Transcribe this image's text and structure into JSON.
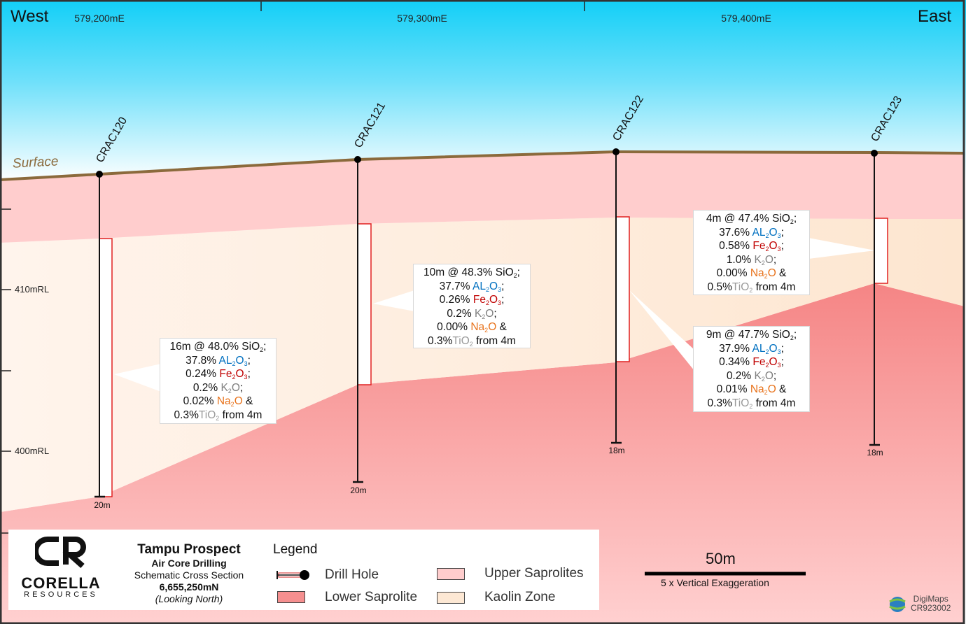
{
  "header": {
    "west": "West",
    "east": "East",
    "eastings": [
      "579,200mE",
      "579,300mE",
      "579,400mE"
    ]
  },
  "surface_label": "Surface",
  "rl_labels": [
    "410mRL",
    "400mRL"
  ],
  "holes": [
    {
      "name": "CRAC120",
      "depth": "20m"
    },
    {
      "name": "CRAC121",
      "depth": "20m"
    },
    {
      "name": "CRAC122",
      "depth": "18m"
    },
    {
      "name": "CRAC123",
      "depth": "18m"
    }
  ],
  "callouts": [
    {
      "lines": [
        [
          {
            "t": "16m @ 48.0% SiO"
          },
          {
            "t": "2",
            "sub": true
          },
          {
            "t": ";"
          }
        ],
        [
          {
            "t": "37.8% "
          },
          {
            "t": "AL",
            "c": "al"
          },
          {
            "t": "2",
            "c": "al",
            "sub": true
          },
          {
            "t": "O",
            "c": "al"
          },
          {
            "t": "3",
            "c": "al",
            "sub": true
          },
          {
            "t": ";"
          }
        ],
        [
          {
            "t": "0.24% "
          },
          {
            "t": "Fe",
            "c": "fe"
          },
          {
            "t": "2",
            "c": "fe",
            "sub": true
          },
          {
            "t": "O",
            "c": "fe"
          },
          {
            "t": "3",
            "c": "fe",
            "sub": true
          },
          {
            "t": ";"
          }
        ],
        [
          {
            "t": "0.2% "
          },
          {
            "t": "K",
            "c": "k"
          },
          {
            "t": "2",
            "c": "k",
            "sub": true
          },
          {
            "t": "O",
            "c": "k"
          },
          {
            "t": ";"
          }
        ],
        [
          {
            "t": "0.02% "
          },
          {
            "t": "Na",
            "c": "na"
          },
          {
            "t": "2",
            "c": "na",
            "sub": true
          },
          {
            "t": "O",
            "c": "na"
          },
          {
            "t": " &"
          }
        ],
        [
          {
            "t": "0.3%"
          },
          {
            "t": "TiO",
            "c": "ti"
          },
          {
            "t": "2",
            "c": "ti",
            "sub": true
          },
          {
            "t": " from 4m"
          }
        ]
      ]
    },
    {
      "lines": [
        [
          {
            "t": "10m @ 48.3% SiO"
          },
          {
            "t": "2",
            "sub": true
          },
          {
            "t": ";"
          }
        ],
        [
          {
            "t": "37.7% "
          },
          {
            "t": "AL",
            "c": "al"
          },
          {
            "t": "2",
            "c": "al",
            "sub": true
          },
          {
            "t": "O",
            "c": "al"
          },
          {
            "t": "3",
            "c": "al",
            "sub": true
          },
          {
            "t": ";"
          }
        ],
        [
          {
            "t": "0.26% "
          },
          {
            "t": "Fe",
            "c": "fe"
          },
          {
            "t": "2",
            "c": "fe",
            "sub": true
          },
          {
            "t": "O",
            "c": "fe"
          },
          {
            "t": "3",
            "c": "fe",
            "sub": true
          },
          {
            "t": ";"
          }
        ],
        [
          {
            "t": "0.2% "
          },
          {
            "t": "K",
            "c": "k"
          },
          {
            "t": "2",
            "c": "k",
            "sub": true
          },
          {
            "t": "O",
            "c": "k"
          },
          {
            "t": ";"
          }
        ],
        [
          {
            "t": "0.00% "
          },
          {
            "t": "Na",
            "c": "na"
          },
          {
            "t": "2",
            "c": "na",
            "sub": true
          },
          {
            "t": "O",
            "c": "na"
          },
          {
            "t": " &"
          }
        ],
        [
          {
            "t": "0.3%"
          },
          {
            "t": "TiO",
            "c": "ti"
          },
          {
            "t": "2",
            "c": "ti",
            "sub": true
          },
          {
            "t": " from 4m"
          }
        ]
      ]
    },
    {
      "lines": [
        [
          {
            "t": "4m @ 47.4% SiO"
          },
          {
            "t": "2",
            "sub": true
          },
          {
            "t": ";"
          }
        ],
        [
          {
            "t": "37.6% "
          },
          {
            "t": "AL",
            "c": "al"
          },
          {
            "t": "2",
            "c": "al",
            "sub": true
          },
          {
            "t": "O",
            "c": "al"
          },
          {
            "t": "3",
            "c": "al",
            "sub": true
          },
          {
            "t": ";"
          }
        ],
        [
          {
            "t": "0.58% "
          },
          {
            "t": "Fe",
            "c": "fe"
          },
          {
            "t": "2",
            "c": "fe",
            "sub": true
          },
          {
            "t": "O",
            "c": "fe"
          },
          {
            "t": "3",
            "c": "fe",
            "sub": true
          },
          {
            "t": ";"
          }
        ],
        [
          {
            "t": "1.0% "
          },
          {
            "t": "K",
            "c": "k"
          },
          {
            "t": "2",
            "c": "k",
            "sub": true
          },
          {
            "t": "O",
            "c": "k"
          },
          {
            "t": ";"
          }
        ],
        [
          {
            "t": "0.00% "
          },
          {
            "t": "Na",
            "c": "na"
          },
          {
            "t": "2",
            "c": "na",
            "sub": true
          },
          {
            "t": "O",
            "c": "na"
          },
          {
            "t": " &"
          }
        ],
        [
          {
            "t": "0.5%"
          },
          {
            "t": "TiO",
            "c": "ti"
          },
          {
            "t": "2",
            "c": "ti",
            "sub": true
          },
          {
            "t": " from 4m"
          }
        ]
      ]
    },
    {
      "lines": [
        [
          {
            "t": "9m @ 47.7% SiO"
          },
          {
            "t": "2",
            "sub": true
          },
          {
            "t": ";"
          }
        ],
        [
          {
            "t": "37.9% "
          },
          {
            "t": "AL",
            "c": "al"
          },
          {
            "t": "2",
            "c": "al",
            "sub": true
          },
          {
            "t": "O",
            "c": "al"
          },
          {
            "t": "3",
            "c": "al",
            "sub": true
          },
          {
            "t": ";"
          }
        ],
        [
          {
            "t": "0.34% "
          },
          {
            "t": "Fe",
            "c": "fe"
          },
          {
            "t": "2",
            "c": "fe",
            "sub": true
          },
          {
            "t": "O",
            "c": "fe"
          },
          {
            "t": "3",
            "c": "fe",
            "sub": true
          },
          {
            "t": ";"
          }
        ],
        [
          {
            "t": "0.2% "
          },
          {
            "t": "K",
            "c": "k"
          },
          {
            "t": "2",
            "c": "k",
            "sub": true
          },
          {
            "t": "O",
            "c": "k"
          },
          {
            "t": ";"
          }
        ],
        [
          {
            "t": "0.01% "
          },
          {
            "t": "Na",
            "c": "na"
          },
          {
            "t": "2",
            "c": "na",
            "sub": true
          },
          {
            "t": "O",
            "c": "na"
          },
          {
            "t": " &"
          }
        ],
        [
          {
            "t": "0.3%"
          },
          {
            "t": "TiO",
            "c": "ti"
          },
          {
            "t": "2",
            "c": "ti",
            "sub": true
          },
          {
            "t": " from 4m"
          }
        ]
      ]
    }
  ],
  "title_block": {
    "logo_mark": "CR",
    "company": "CORELLA",
    "company_sub": "RESOURCES",
    "title": "Tampu Prospect",
    "subtitle": "Air Core Drilling",
    "line3": "Schematic Cross Section",
    "northing": "6,655,250mN",
    "view": "(Looking North)"
  },
  "legend": {
    "title": "Legend",
    "items": [
      {
        "label": "Drill Hole"
      },
      {
        "label": "Lower Saprolite",
        "color": "#f58f8f"
      },
      {
        "label": "Upper Saprolites",
        "color": "#ffcdcd"
      },
      {
        "label": "Kaolin Zone",
        "color": "#fde8d4"
      }
    ]
  },
  "scale": {
    "label": "50m",
    "note": "5 x Vertical Exaggeration"
  },
  "credit": {
    "name": "DigiMaps",
    "code": "CR923002"
  },
  "colors": {
    "surface": "#8b6a3c",
    "upper": "#ffcdcd",
    "kaolin": "#fde8d4",
    "lower": "#f58f8f",
    "sky": "#12cff7"
  }
}
